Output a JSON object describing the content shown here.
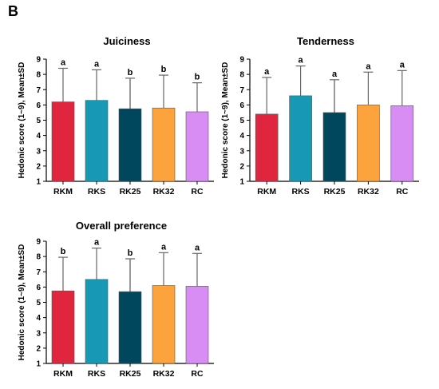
{
  "panel_label": "B",
  "chart_data": [
    {
      "type": "bar",
      "title": "Juiciness",
      "ylabel": "Hedonic score (1~9), Mean±SD",
      "xlabel": "",
      "ylim": [
        1,
        9
      ],
      "yticks": [
        1,
        2,
        3,
        4,
        5,
        6,
        7,
        8,
        9
      ],
      "categories": [
        "RKM",
        "RKS",
        "RK25",
        "RK32",
        "RC"
      ],
      "values": [
        6.2,
        6.3,
        5.75,
        5.8,
        5.55
      ],
      "errors": [
        2.2,
        2.0,
        2.0,
        2.15,
        1.9
      ],
      "significance_letters": [
        "a",
        "a",
        "b",
        "b",
        "b"
      ],
      "colors": [
        "#e0253f",
        "#1699b5",
        "#00475e",
        "#fca33e",
        "#d88df5"
      ]
    },
    {
      "type": "bar",
      "title": "Tenderness",
      "ylabel": "Hedonic score (1~9), Mean±SD",
      "xlabel": "",
      "ylim": [
        1,
        9
      ],
      "yticks": [
        1,
        2,
        3,
        4,
        5,
        6,
        7,
        8,
        9
      ],
      "categories": [
        "RKM",
        "RKS",
        "RK25",
        "RK32",
        "RC"
      ],
      "values": [
        5.4,
        6.6,
        5.5,
        6.0,
        5.95
      ],
      "errors": [
        2.4,
        1.95,
        2.15,
        2.15,
        2.3
      ],
      "significance_letters": [
        "a",
        "a",
        "a",
        "a",
        "a"
      ],
      "colors": [
        "#e0253f",
        "#1699b5",
        "#00475e",
        "#fca33e",
        "#d88df5"
      ]
    },
    {
      "type": "bar",
      "title": "Overall preference",
      "ylabel": "Hedonic score (1~9), Mean±SD",
      "xlabel": "",
      "ylim": [
        1,
        9
      ],
      "yticks": [
        1,
        2,
        3,
        4,
        5,
        6,
        7,
        8,
        9
      ],
      "categories": [
        "RKM",
        "RKS",
        "RK25",
        "RK32",
        "RC"
      ],
      "values": [
        5.75,
        6.5,
        5.7,
        6.1,
        6.05
      ],
      "errors": [
        2.2,
        2.05,
        2.15,
        2.15,
        2.15
      ],
      "significance_letters": [
        "b",
        "a",
        "b",
        "a",
        "a"
      ],
      "colors": [
        "#e0253f",
        "#1699b5",
        "#00475e",
        "#fca33e",
        "#d88df5"
      ]
    }
  ]
}
